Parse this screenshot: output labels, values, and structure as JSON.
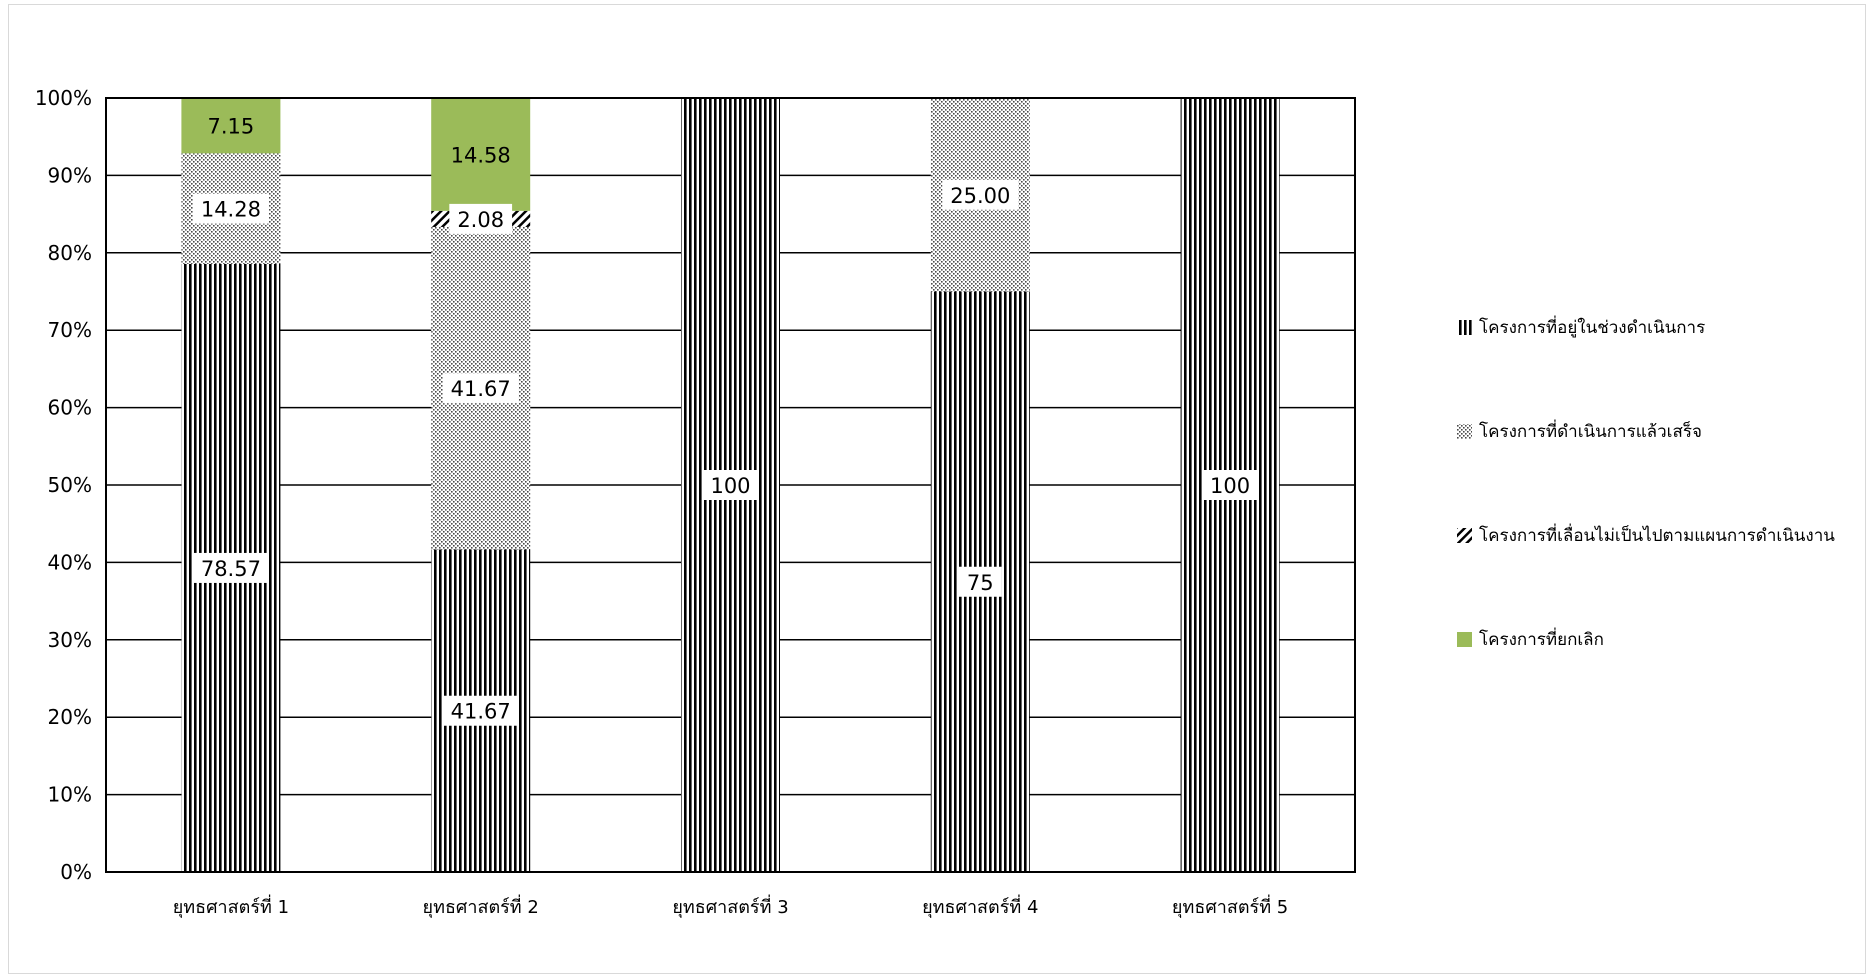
{
  "chart_data": {
    "type": "bar",
    "stacked": true,
    "percent": true,
    "title": "",
    "xlabel": "",
    "ylabel": "",
    "ylim": [
      0,
      100
    ],
    "y_ticks": [
      "0%",
      "10%",
      "20%",
      "30%",
      "40%",
      "50%",
      "60%",
      "70%",
      "80%",
      "90%",
      "100%"
    ],
    "grid": true,
    "legend_position": "right",
    "categories": [
      "ยุทธศาสตร์ที่ 1",
      "ยุทธศาสตร์ที่ 2",
      "ยุทธศาสตร์ที่ 3",
      "ยุทธศาสตร์ที่ 4",
      "ยุทธศาสตร์ที่ 5"
    ],
    "series": [
      {
        "name": "โครงการที่อยู่ในช่วงดำเนินการ",
        "values": [
          78.57,
          41.67,
          100,
          75,
          100
        ],
        "labels": [
          "78.57",
          "41.67",
          "100",
          "75",
          "100"
        ],
        "pattern": "vertical-stripes",
        "color": "#000000"
      },
      {
        "name": "โครงการที่ดำเนินการแล้วเสร็จ",
        "values": [
          14.28,
          41.67,
          0,
          25,
          0
        ],
        "labels": [
          "14.28",
          "41.67",
          "",
          "25.00",
          ""
        ],
        "pattern": "dots",
        "color": "#555555"
      },
      {
        "name": "โครงการที่เลื่อนไม่เป็นไปตามแผนการดำเนินงาน",
        "values": [
          0,
          2.08,
          0,
          0,
          0
        ],
        "labels": [
          "",
          "2.08",
          "",
          "",
          ""
        ],
        "pattern": "diagonal-stripes",
        "color": "#000000"
      },
      {
        "name": "โครงการที่ยกเลิก",
        "values": [
          7.15,
          14.58,
          0,
          0,
          0
        ],
        "labels": [
          "7.15",
          "14.58",
          "",
          "",
          ""
        ],
        "pattern": "solid",
        "color": "#9bbb59"
      }
    ]
  }
}
